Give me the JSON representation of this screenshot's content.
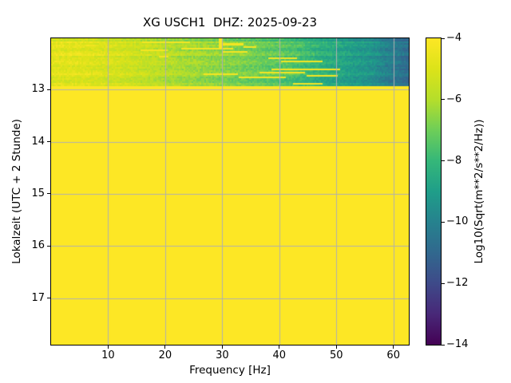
{
  "figure": {
    "background_color": "#ffffff",
    "spine_color": "#000000",
    "grid_color": "#b0b0b0"
  },
  "chart_data": {
    "type": "heatmap",
    "subtype": "spectrogram",
    "title": "XG USCH1  DHZ: 2025-09-23",
    "xlabel": "Frequency [Hz]",
    "ylabel": "Lokalzeit (UTC + 2 Stunde)",
    "xlim": [
      0,
      62.7
    ],
    "ylim_top_to_bottom": [
      12.02,
      17.89
    ],
    "xticks": [
      10,
      20,
      30,
      40,
      50,
      60
    ],
    "xtick_labels": [
      "10",
      "20",
      "30",
      "40",
      "50",
      "60"
    ],
    "yticks": [
      13,
      14,
      15,
      16,
      17
    ],
    "ytick_labels": [
      "13",
      "14",
      "15",
      "16",
      "17"
    ],
    "grid": true,
    "legend_position": "none",
    "colormap": "viridis",
    "colorbar": {
      "label": "Log10(Sqrt(m**2/s**2/Hz))",
      "vmin": -14,
      "vmax": -4,
      "ticks": [
        -4,
        -6,
        -8,
        -10,
        -12,
        -14
      ],
      "tick_labels": [
        "−4",
        "−6",
        "−8",
        "−10",
        "−12",
        "−14"
      ]
    },
    "viridis_stops": [
      [
        0.0,
        "#440154"
      ],
      [
        0.1,
        "#482878"
      ],
      [
        0.2,
        "#3e4a89"
      ],
      [
        0.3,
        "#31688e"
      ],
      [
        0.4,
        "#26828e"
      ],
      [
        0.5,
        "#1f9e89"
      ],
      [
        0.6,
        "#35b779"
      ],
      [
        0.7,
        "#6ece58"
      ],
      [
        0.8,
        "#b5de2b"
      ],
      [
        0.9,
        "#dce319"
      ],
      [
        1.0,
        "#fde725"
      ]
    ],
    "regions": [
      {
        "name": "textured-spectrogram-band",
        "time_start": 12.02,
        "time_end": 12.93,
        "description": "Real spectral data: Log10 PSD decreasing with frequency, yellow-green at low Hz to blue-teal near Nyquist, with noisy rows and bright yellow streak artifacts near 20-35 Hz",
        "freq_value_profile": [
          {
            "f": 0,
            "v": -4.85
          },
          {
            "f": 6,
            "v": -4.95
          },
          {
            "f": 12,
            "v": -5.3
          },
          {
            "f": 18,
            "v": -5.8
          },
          {
            "f": 24,
            "v": -6.3
          },
          {
            "f": 30,
            "v": -6.7
          },
          {
            "f": 36,
            "v": -7.1
          },
          {
            "f": 42,
            "v": -7.6
          },
          {
            "f": 47,
            "v": -8.3
          },
          {
            "f": 52,
            "v": -9.0
          },
          {
            "f": 56,
            "v": -9.4
          },
          {
            "f": 59,
            "v": -10.2
          },
          {
            "f": 62.7,
            "v": -10.9
          }
        ],
        "noise_amplitude": 0.85,
        "yellow_streak_value": -4.25
      },
      {
        "name": "saturated-band",
        "time_start": 12.93,
        "time_end": 17.89,
        "description": "Constant saturated value, rendered as solid colormap-maximum yellow",
        "value": -4
      }
    ]
  }
}
